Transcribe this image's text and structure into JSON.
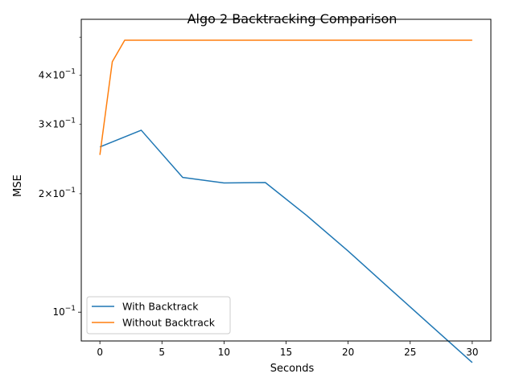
{
  "chart_data": {
    "type": "line",
    "title": "Algo 2 Backtracking Comparison",
    "xlabel": "Seconds",
    "ylabel": "MSE",
    "xlim": [
      -1.5,
      31.5
    ],
    "ylim": [
      0.0845,
      0.555
    ],
    "yscale": "log",
    "grid": false,
    "legend_position": "lower-left",
    "x_ticks": [
      {
        "value": 0,
        "label": "0"
      },
      {
        "value": 5,
        "label": "5"
      },
      {
        "value": 10,
        "label": "10"
      },
      {
        "value": 15,
        "label": "15"
      },
      {
        "value": 20,
        "label": "20"
      },
      {
        "value": 25,
        "label": "25"
      },
      {
        "value": 30,
        "label": "30"
      }
    ],
    "y_major_ticks": [
      {
        "value": 0.1,
        "base": "10",
        "exp": "−1"
      }
    ],
    "y_minor_ticks": [
      {
        "value": 0.2,
        "mult": "2",
        "base": "10",
        "exp": "−1"
      },
      {
        "value": 0.3,
        "mult": "3",
        "base": "10",
        "exp": "−1"
      },
      {
        "value": 0.4,
        "mult": "4",
        "base": "10",
        "exp": "−1"
      },
      {
        "value": 0.5,
        "mult": "",
        "base": "",
        "exp": ""
      }
    ],
    "series": [
      {
        "name": "With Backtrack",
        "color": "#1f77b4",
        "x": [
          0,
          3.33,
          6.67,
          10,
          13.33,
          16.67,
          20,
          23.33,
          26.67,
          30
        ],
        "y": [
          0.263,
          0.29,
          0.22,
          0.213,
          0.2135,
          0.176,
          0.143,
          0.115,
          0.0925,
          0.0745
        ]
      },
      {
        "name": "Without Backtrack",
        "color": "#ff7f0e",
        "x": [
          0,
          1,
          2,
          3,
          30
        ],
        "y": [
          0.251,
          0.433,
          0.491,
          0.491,
          0.491
        ]
      }
    ]
  }
}
